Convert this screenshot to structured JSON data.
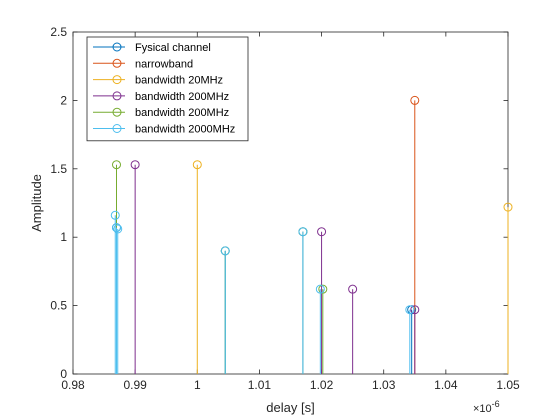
{
  "chart_data": {
    "type": "stem",
    "xlabel": "delay [s]",
    "ylabel": "Amplitude",
    "x_exponent_label": "×10",
    "x_exponent_value": "-6",
    "xlim": [
      0.98,
      1.05
    ],
    "ylim": [
      0,
      2.5
    ],
    "x_ticks": [
      "0.98",
      "0.99",
      "1",
      "1.01",
      "1.02",
      "1.03",
      "1.04",
      "1.05"
    ],
    "y_ticks": [
      "0",
      "0.5",
      "1",
      "1.5",
      "2",
      "2.5"
    ],
    "legend_position": "top-left",
    "grid": false,
    "series": [
      {
        "name": "Fysical channel",
        "color": "#0072BD",
        "points": [
          {
            "x": 0.987,
            "y": 1.07
          },
          {
            "x": 1.0045,
            "y": 0.9
          },
          {
            "x": 1.017,
            "y": 1.04
          },
          {
            "x": 1.0345,
            "y": 0.47
          }
        ]
      },
      {
        "name": "narrowband",
        "color": "#D95319",
        "points": [
          {
            "x": 1.035,
            "y": 2.0
          }
        ]
      },
      {
        "name": "bandwidth 20MHz",
        "color": "#EDB120",
        "points": [
          {
            "x": 1.0,
            "y": 1.53
          },
          {
            "x": 1.05,
            "y": 1.22
          }
        ]
      },
      {
        "name": "bandwidth 200MHz",
        "color": "#7E2F8E",
        "points": [
          {
            "x": 0.99,
            "y": 1.53
          },
          {
            "x": 1.02,
            "y": 1.04
          },
          {
            "x": 1.025,
            "y": 0.62
          },
          {
            "x": 1.035,
            "y": 0.47
          }
        ]
      },
      {
        "name": "bandwidth 200MHz",
        "color": "#77AC30",
        "points": [
          {
            "x": 0.987,
            "y": 1.53
          },
          {
            "x": 1.0045,
            "y": 0.9
          },
          {
            "x": 1.017,
            "y": 1.04
          },
          {
            "x": 1.0202,
            "y": 0.62
          }
        ]
      },
      {
        "name": "bandwidth 2000MHz",
        "color": "#4DBEEE",
        "points": [
          {
            "x": 0.9868,
            "y": 1.16
          },
          {
            "x": 0.987,
            "y": 1.07
          },
          {
            "x": 0.9872,
            "y": 1.06
          },
          {
            "x": 1.0045,
            "y": 0.9
          },
          {
            "x": 1.017,
            "y": 1.04
          },
          {
            "x": 1.0198,
            "y": 0.62
          },
          {
            "x": 1.0342,
            "y": 0.47
          }
        ]
      }
    ]
  }
}
